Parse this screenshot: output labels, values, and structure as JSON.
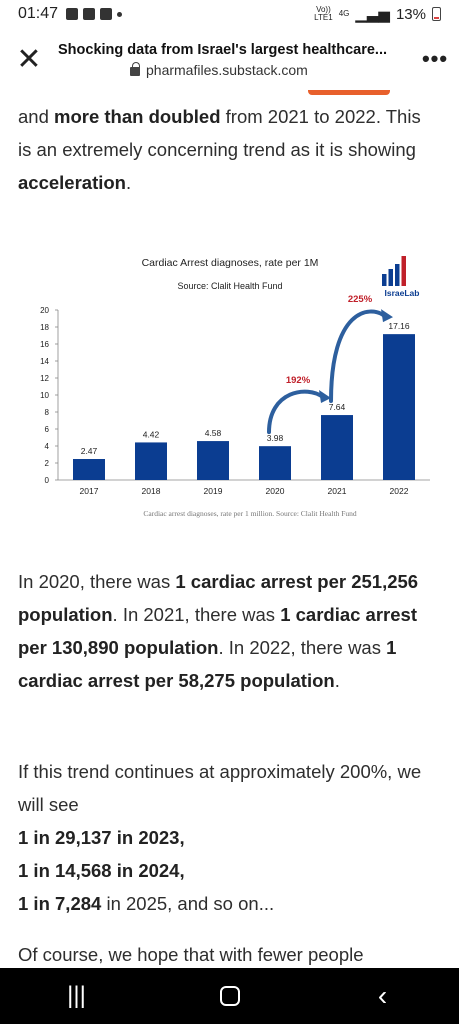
{
  "status": {
    "time": "01:47",
    "network_a": "Vo))",
    "network_b": "LTE1",
    "network_c": "4G",
    "battery": "13%"
  },
  "browser": {
    "page_title": "Shocking data from Israel's largest healthcare...",
    "url": "pharmafiles.substack.com"
  },
  "article": {
    "p1_a": "and ",
    "p1_b": "more than doubled",
    "p1_c": " from 2021 to 2022. This is an extremely concerning trend as it is showing ",
    "p1_d": "acceleration",
    "p1_e": ".",
    "p2_a": "In 2020, there was ",
    "p2_b": "1 cardiac arrest per 251,256 population",
    "p2_c": ". In 2021, there was ",
    "p2_d": "1 cardiac arrest per 130,890 population",
    "p2_e": ". In 2022, there was ",
    "p2_f": "1 cardiac arrest per 58,275 population",
    "p2_g": ".",
    "p3_a": "If this trend continues at approximately 200%, we will see",
    "p3_b": "1 in 29,137 in 2023,",
    "p3_c": "1 in 14,568 in 2024,",
    "p3_d": "1 in 7,284",
    "p3_e": " in 2025, and so on...",
    "p4": "Of course, we hope that with fewer people"
  },
  "chart_data": {
    "type": "bar",
    "title": "Cardiac Arrest diagnoses, rate per 1M",
    "subtitle": "Source: Clalit Health Fund",
    "logo_text": "IsraeLab",
    "categories": [
      "2017",
      "2018",
      "2019",
      "2020",
      "2021",
      "2022"
    ],
    "values": [
      2.47,
      4.42,
      4.58,
      3.98,
      7.64,
      17.16
    ],
    "value_labels": [
      "2.47",
      "4.42",
      "4.58",
      "3.98",
      "7.64",
      "17.16"
    ],
    "ylim": [
      0,
      20
    ],
    "yticks": [
      0,
      2,
      4,
      6,
      8,
      10,
      12,
      14,
      16,
      18,
      20
    ],
    "annotations": [
      {
        "text": "192%",
        "from": "2020",
        "to": "2021"
      },
      {
        "text": "225%",
        "from": "2021",
        "to": "2022"
      }
    ],
    "caption": "Cardiac arrest diagnoses, rate per 1 million. Source: Clalit Health Fund",
    "bar_color": "#0b3d91",
    "annotation_color": "#c0202a",
    "arrow_color": "#2d5f9e",
    "grid": false
  }
}
